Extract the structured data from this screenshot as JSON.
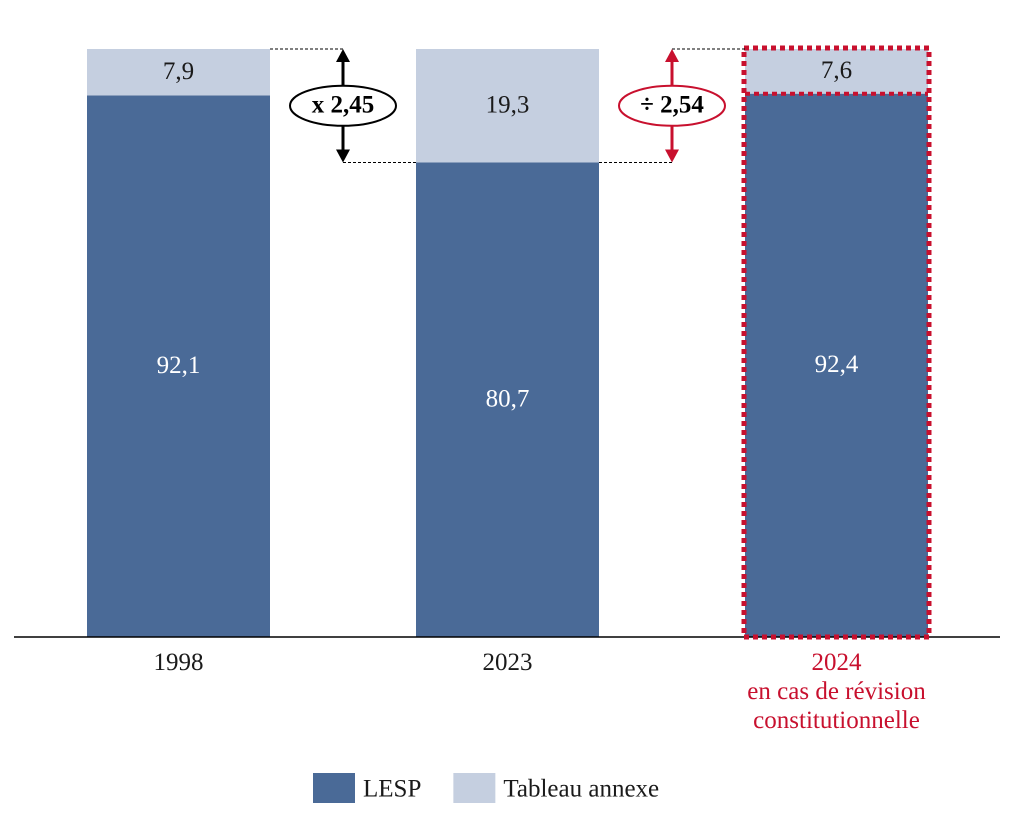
{
  "chart_data": {
    "type": "stacked_bar",
    "categories": [
      "1998",
      "2023",
      "2024"
    ],
    "category_note": "en cas de révision constitutionnelle",
    "highlight_index": 2,
    "highlight_color": "#c8102e",
    "series": [
      {
        "name": "LESP",
        "color": "#4a6a97",
        "label_color": "#ffffff",
        "values": [
          92.1,
          80.7,
          92.4
        ],
        "value_labels": [
          "92,1",
          "80,7",
          "92,4"
        ]
      },
      {
        "name": "Tableau annexe",
        "color": "#c5cfe0",
        "label_color": "#1a1a1a",
        "values": [
          7.9,
          19.3,
          7.6
        ],
        "value_labels": [
          "7,9",
          "19,3",
          "7,6"
        ]
      }
    ],
    "annotations": [
      {
        "text": "x 2,45",
        "color": "#000000"
      },
      {
        "text": "÷ 2,54",
        "color": "#c8102e"
      }
    ]
  }
}
